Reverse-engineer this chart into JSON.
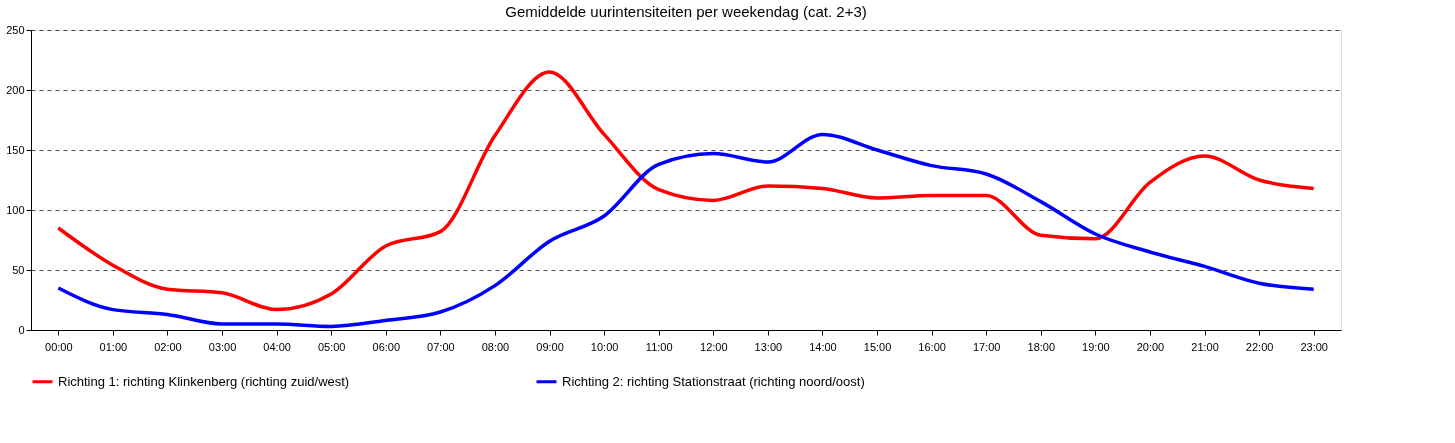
{
  "chart_data": {
    "type": "line",
    "title": "Gemiddelde uurintensiteiten per weekendag (cat. 2+3)",
    "categories": [
      "00:00",
      "01:00",
      "02:00",
      "03:00",
      "04:00",
      "05:00",
      "06:00",
      "07:00",
      "08:00",
      "09:00",
      "10:00",
      "11:00",
      "12:00",
      "13:00",
      "14:00",
      "15:00",
      "16:00",
      "17:00",
      "18:00",
      "19:00",
      "20:00",
      "21:00",
      "22:00",
      "23:00"
    ],
    "series": [
      {
        "name": "Richting 1: richting Klinkenberg (richting zuid/west)",
        "color": "#ff0000",
        "values": [
          85,
          54,
          34,
          31,
          17,
          30,
          70,
          82,
          162,
          215,
          163,
          117,
          108,
          120,
          118,
          110,
          112,
          112,
          79,
          76,
          123,
          145,
          125,
          118
        ]
      },
      {
        "name": "Richting 2: richting Stationstraat (richting noord/oost)",
        "color": "#0000ff",
        "values": [
          35,
          17,
          13,
          5,
          5,
          3,
          8,
          15,
          37,
          74,
          95,
          138,
          147,
          140,
          163,
          150,
          137,
          130,
          107,
          80,
          65,
          53,
          39,
          34
        ]
      }
    ],
    "ylim": [
      0,
      250
    ],
    "yticks": [
      0,
      50,
      100,
      150,
      200,
      250
    ],
    "grid": "y",
    "legend": "bottom",
    "marker": "none",
    "line_style": "solid"
  }
}
